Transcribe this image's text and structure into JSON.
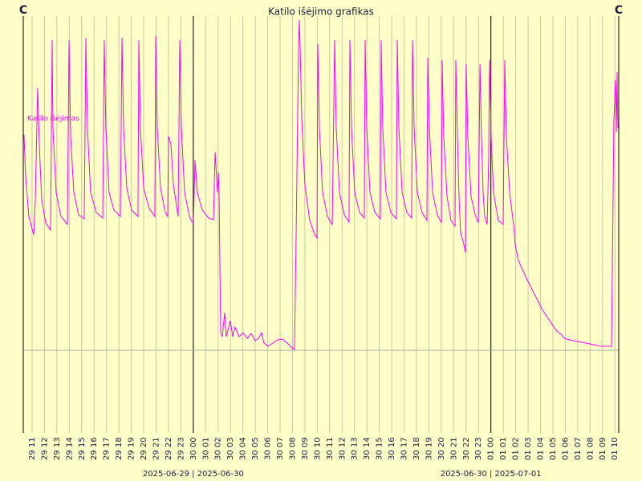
{
  "chart_data": {
    "type": "line",
    "title": "Katilo išėjimo grafikas",
    "y_label": "C",
    "y2_label": "C",
    "xlim": [
      10.29,
      58.31
    ],
    "ylim": [
      0,
      104
    ],
    "reference_line": 20.6,
    "day_lines": [
      24,
      48
    ],
    "date_labels": [
      "2025-06-29 | 2025-06-30",
      "2025-06-30 | 2025-07-01"
    ],
    "grid": true,
    "xticks": [
      {
        "value": 11,
        "label": "29 11"
      },
      {
        "value": 12,
        "label": "29 12"
      },
      {
        "value": 13,
        "label": "29 13"
      },
      {
        "value": 14,
        "label": "29 14"
      },
      {
        "value": 15,
        "label": "29 15"
      },
      {
        "value": 16,
        "label": "29 16"
      },
      {
        "value": 17,
        "label": "29 17"
      },
      {
        "value": 18,
        "label": "29 18"
      },
      {
        "value": 19,
        "label": "29 19"
      },
      {
        "value": 20,
        "label": "29 20"
      },
      {
        "value": 21,
        "label": "29 21"
      },
      {
        "value": 22,
        "label": "29 22"
      },
      {
        "value": 23,
        "label": "29 23"
      },
      {
        "value": 24,
        "label": "30 00"
      },
      {
        "value": 25,
        "label": "30 01"
      },
      {
        "value": 26,
        "label": "30 02"
      },
      {
        "value": 27,
        "label": "30 03"
      },
      {
        "value": 28,
        "label": "30 04"
      },
      {
        "value": 29,
        "label": "30 05"
      },
      {
        "value": 30,
        "label": "30 06"
      },
      {
        "value": 31,
        "label": "30 07"
      },
      {
        "value": 32,
        "label": "30 08"
      },
      {
        "value": 33,
        "label": "30 09"
      },
      {
        "value": 34,
        "label": "30 10"
      },
      {
        "value": 35,
        "label": "30 11"
      },
      {
        "value": 36,
        "label": "30 12"
      },
      {
        "value": 37,
        "label": "30 13"
      },
      {
        "value": 38,
        "label": "30 14"
      },
      {
        "value": 39,
        "label": "30 15"
      },
      {
        "value": 40,
        "label": "30 16"
      },
      {
        "value": 41,
        "label": "30 17"
      },
      {
        "value": 42,
        "label": "30 18"
      },
      {
        "value": 43,
        "label": "30 19"
      },
      {
        "value": 44,
        "label": "30 20"
      },
      {
        "value": 45,
        "label": "30 21"
      },
      {
        "value": 46,
        "label": "30 22"
      },
      {
        "value": 47,
        "label": "30 23"
      },
      {
        "value": 48,
        "label": "01 00"
      },
      {
        "value": 49,
        "label": "01 01"
      },
      {
        "value": 50,
        "label": "01 02"
      },
      {
        "value": 51,
        "label": "01 03"
      },
      {
        "value": 52,
        "label": "01 04"
      },
      {
        "value": 53,
        "label": "01 05"
      },
      {
        "value": 54,
        "label": "01 06"
      },
      {
        "value": 55,
        "label": "01 07"
      },
      {
        "value": 56,
        "label": "01 08"
      },
      {
        "value": 57,
        "label": "01 09"
      },
      {
        "value": 58,
        "label": "01 10"
      }
    ],
    "series": [
      {
        "name": "Katilo išėjimas",
        "color": "#ff00ff",
        "x": [
          10.35,
          10.48,
          10.74,
          11.13,
          11.26,
          11.45,
          11.58,
          11.78,
          12.1,
          12.49,
          12.62,
          12.68,
          12.94,
          13.33,
          13.85,
          13.98,
          14.11,
          14.37,
          14.75,
          15.21,
          15.34,
          15.47,
          15.72,
          16.18,
          16.7,
          16.82,
          16.95,
          17.21,
          17.6,
          18.12,
          18.25,
          18.38,
          18.64,
          19.03,
          19.54,
          19.61,
          19.74,
          20.0,
          20.45,
          20.9,
          20.97,
          21.1,
          21.36,
          21.74,
          21.94,
          22.0,
          22.2,
          22.39,
          22.78,
          22.91,
          23.04,
          23.3,
          23.69,
          23.88,
          24.01,
          24.14,
          24.33,
          24.72,
          25.24,
          25.63,
          25.76,
          25.95,
          26.02,
          26.08,
          26.21,
          26.34,
          26.53,
          26.66,
          26.99,
          27.18,
          27.37,
          27.7,
          28.02,
          28.35,
          28.67,
          28.99,
          29.25,
          29.51,
          29.7,
          30.03,
          30.42,
          30.8,
          31.19,
          31.58,
          31.9,
          32.16,
          32.29,
          32.49,
          32.55,
          32.62,
          32.75,
          33.0,
          33.39,
          33.78,
          33.98,
          34.04,
          34.17,
          34.43,
          34.82,
          35.21,
          35.4,
          35.53,
          35.79,
          36.18,
          36.56,
          36.63,
          36.76,
          37.02,
          37.41,
          37.79,
          37.86,
          37.99,
          38.25,
          38.64,
          39.09,
          39.15,
          39.28,
          39.54,
          39.93,
          40.38,
          40.45,
          40.58,
          40.84,
          41.22,
          41.61,
          41.68,
          41.81,
          42.07,
          42.45,
          42.84,
          42.91,
          43.04,
          43.3,
          43.68,
          44.01,
          44.07,
          44.2,
          44.46,
          44.78,
          45.11,
          45.17,
          45.3,
          45.43,
          45.56,
          45.82,
          45.95,
          46.01,
          46.14,
          46.4,
          46.73,
          46.99,
          47.12,
          47.24,
          47.37,
          47.5,
          47.7,
          47.82,
          47.89,
          48.02,
          48.21,
          48.6,
          48.99,
          49.12,
          49.25,
          49.51,
          49.83,
          49.96,
          50.22,
          50.8,
          51.45,
          52.1,
          52.74,
          53.26,
          53.72,
          53.91,
          54.36,
          55.01,
          55.66,
          56.3,
          56.95,
          57.73,
          57.92,
          58.05,
          58.12,
          58.18,
          58.24
        ],
        "values": [
          74.4,
          64,
          54,
          49.4,
          58,
          86,
          72,
          58,
          52.4,
          50.6,
          98,
          76,
          60,
          54,
          52,
          98,
          74,
          60,
          54.4,
          53.4,
          98.6,
          76,
          60,
          55,
          53.6,
          98,
          76,
          60,
          55.6,
          54,
          98.6,
          76,
          61,
          55.6,
          54,
          98,
          76,
          61,
          56,
          54,
          99,
          76,
          61,
          55,
          54,
          74,
          72,
          62,
          54,
          98,
          76,
          60,
          54,
          52.8,
          52.4,
          68,
          60,
          55.6,
          53.6,
          53.2,
          70,
          60,
          65,
          60,
          25,
          24,
          30,
          24,
          28,
          24,
          26.4,
          24,
          25,
          23.6,
          24.8,
          23,
          23.6,
          25,
          22.4,
          21.6,
          22.4,
          23.2,
          23.4,
          22.4,
          21.4,
          20.8,
          48,
          96,
          103,
          96,
          78,
          62,
          53,
          49.6,
          48.6,
          97,
          76,
          60,
          54,
          52,
          98,
          76,
          60,
          54.4,
          52.6,
          98,
          76,
          60,
          55,
          53.6,
          98,
          76,
          60,
          55,
          53.4,
          98,
          76,
          60,
          55,
          53.4,
          98,
          76,
          60,
          55,
          53.6,
          98,
          76,
          60,
          55,
          53,
          93.6,
          76,
          60,
          54.4,
          52.4,
          93,
          74,
          59,
          53,
          51.6,
          93,
          74,
          59,
          50,
          47,
          45,
          92,
          74,
          59,
          54.4,
          52.4,
          92,
          74,
          60,
          54,
          52,
          68,
          93,
          74,
          60,
          53,
          52,
          93,
          74,
          60,
          52,
          47,
          43,
          39,
          35,
          31,
          28,
          25.6,
          24.4,
          23.6,
          23.2,
          22.8,
          22.4,
          22,
          21.6,
          21.6,
          78,
          88,
          75,
          90,
          76
        ]
      }
    ]
  }
}
